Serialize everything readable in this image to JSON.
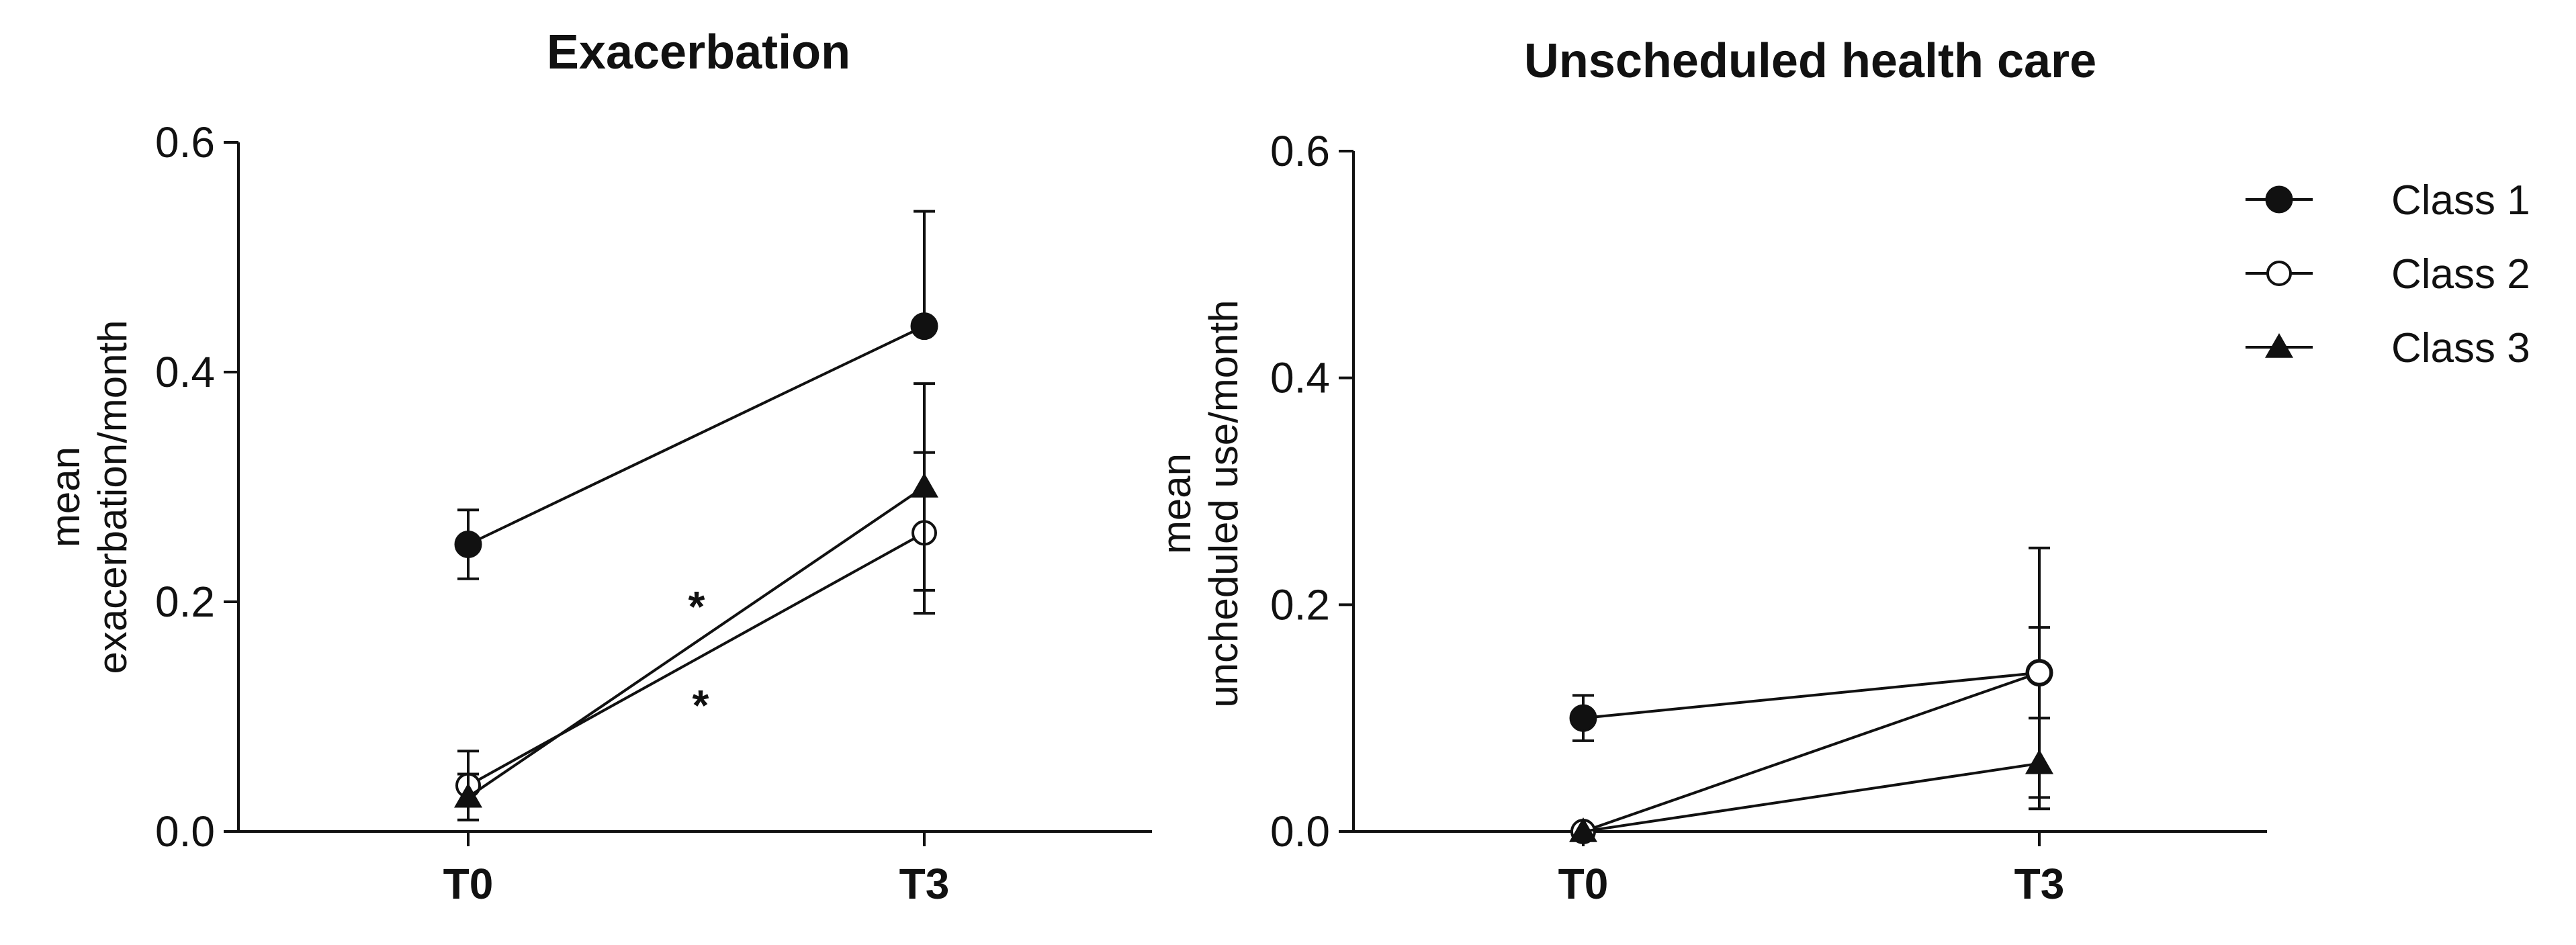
{
  "chart_data": [
    {
      "type": "line",
      "title": "Exacerbation",
      "ylabel_lines": [
        "mean",
        "exacerbation/month"
      ],
      "categories": [
        "T0",
        "T3"
      ],
      "ylim": [
        0,
        0.6
      ],
      "yticks": [
        "0.0",
        "0.2",
        "0.4",
        "0.6"
      ],
      "series": [
        {
          "name": "Class 1",
          "marker": "filled-circle",
          "values": [
            0.25,
            0.44
          ],
          "err_low": [
            0.22,
            null
          ],
          "err_high": [
            0.28,
            0.54
          ]
        },
        {
          "name": "Class 2",
          "marker": "open-circle",
          "values": [
            0.04,
            0.26
          ],
          "err_low": [
            0.01,
            0.19
          ],
          "err_high": [
            0.07,
            0.33
          ]
        },
        {
          "name": "Class 3",
          "marker": "filled-triangle",
          "values": [
            0.03,
            0.3
          ],
          "err_low": [
            0.01,
            0.21
          ],
          "err_high": [
            0.05,
            0.39
          ]
        }
      ],
      "annotations": [
        "*",
        "*"
      ]
    },
    {
      "type": "line",
      "title": "Unscheduled health care",
      "ylabel_lines": [
        "mean",
        "uncheduled use/month"
      ],
      "categories": [
        "T0",
        "T3"
      ],
      "ylim": [
        0,
        0.6
      ],
      "yticks": [
        "0.0",
        "0.2",
        "0.4",
        "0.6"
      ],
      "series": [
        {
          "name": "Class 1",
          "marker": "filled-circle",
          "values": [
            0.1,
            0.14
          ],
          "err_low": [
            0.08,
            0.03
          ],
          "err_high": [
            0.12,
            0.25
          ]
        },
        {
          "name": "Class 2",
          "marker": "open-circle",
          "values": [
            0.0,
            0.14
          ],
          "err_low": [
            null,
            0.1
          ],
          "err_high": [
            null,
            0.18
          ]
        },
        {
          "name": "Class 3",
          "marker": "filled-triangle",
          "values": [
            0.0,
            0.06
          ],
          "err_low": [
            null,
            0.02
          ],
          "err_high": [
            null,
            0.1
          ]
        }
      ]
    }
  ],
  "legend": [
    {
      "label": "Class 1",
      "marker": "filled-circle"
    },
    {
      "label": "Class 2",
      "marker": "open-circle"
    },
    {
      "label": "Class 3",
      "marker": "filled-triangle"
    }
  ]
}
